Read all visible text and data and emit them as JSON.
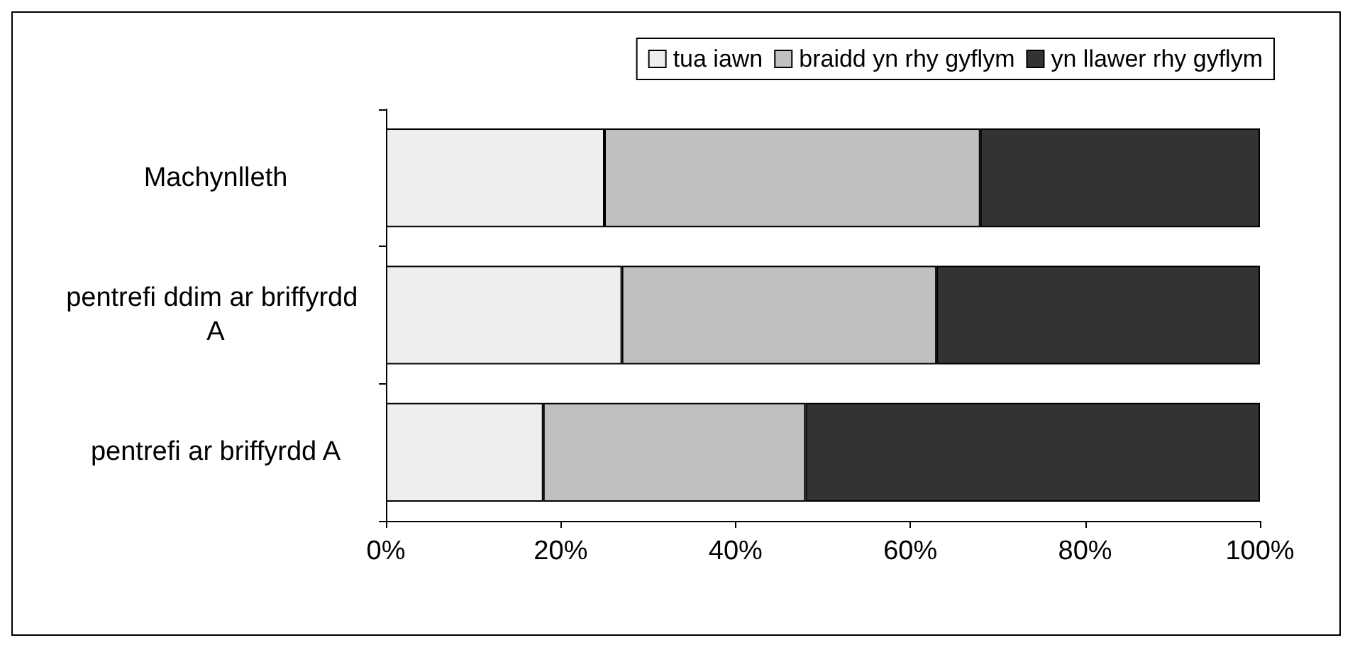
{
  "chart_data": {
    "type": "bar",
    "orientation": "horizontal",
    "stacked": true,
    "categories": [
      "Machynlleth",
      "pentrefi ddim ar briffyrdd A",
      "pentrefi ar briffyrdd A"
    ],
    "series": [
      {
        "name": "tua iawn",
        "color": "#eeeeee",
        "values": [
          25,
          27,
          18
        ]
      },
      {
        "name": "braidd yn rhy gyflym",
        "color": "#c0c0c0",
        "values": [
          43,
          36,
          30
        ]
      },
      {
        "name": "yn llawer rhy gyflym",
        "color": "#333333",
        "values": [
          32,
          37,
          52
        ]
      }
    ],
    "xlim": [
      0,
      100
    ],
    "xticks": [
      {
        "value": 0,
        "label": "0%"
      },
      {
        "value": 20,
        "label": "20%"
      },
      {
        "value": 40,
        "label": "40%"
      },
      {
        "value": 60,
        "label": "60%"
      },
      {
        "value": 80,
        "label": "80%"
      },
      {
        "value": 100,
        "label": "100%"
      }
    ],
    "grid": false,
    "legend": "top right"
  }
}
